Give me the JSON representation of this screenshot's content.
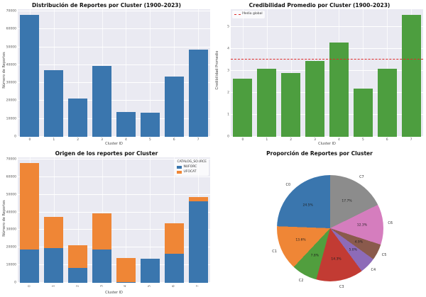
{
  "figure": {
    "background": "#ffffff",
    "axes_background": "#eaeaf2",
    "grid_color": "#ffffff"
  },
  "chart_data": [
    {
      "type": "bar",
      "title": "Distribución de Reportes por Cluster (1900–2023)",
      "xlabel": "Cluster ID",
      "ylabel": "Número de Reportes",
      "categories": [
        "0",
        "1",
        "2",
        "3",
        "4",
        "5",
        "6",
        "7"
      ],
      "values": [
        68000,
        37300,
        21300,
        39400,
        13900,
        13600,
        33700,
        48800
      ],
      "yticks": [
        0,
        10000,
        20000,
        30000,
        40000,
        50000,
        60000,
        70000
      ],
      "ylim": [
        0,
        71200
      ],
      "bar_color": "#3a76ae",
      "grid": "on",
      "legend_position": "none"
    },
    {
      "type": "bar",
      "title": "Credibilidad Promedio por Cluster (1900–2023)",
      "xlabel": "Cluster ID",
      "ylabel": "Credibilidad Promedio",
      "categories": [
        "0",
        "1",
        "2",
        "3",
        "4",
        "5",
        "6",
        "7"
      ],
      "values": [
        2.65,
        3.1,
        2.9,
        3.45,
        4.3,
        2.2,
        3.1,
        5.55
      ],
      "yticks": [
        0,
        1,
        2,
        3,
        4,
        5
      ],
      "ylim": [
        0,
        5.8
      ],
      "bar_color": "#4d9e3f",
      "grid": "on",
      "legend_position": "upper left",
      "annotations": [
        {
          "type": "hline",
          "label": "Media global",
          "y": 3.5,
          "color": "#dd2a2a",
          "style": "dashed"
        }
      ]
    },
    {
      "type": "bar-stacked",
      "title": "Origen de los reportes por Cluster",
      "xlabel": "Cluster ID",
      "ylabel": "Número de Reportes",
      "legend_title": "CATALOG_SOURCE",
      "legend_position": "upper right",
      "categories": [
        "0",
        "1",
        "2",
        "3",
        "4",
        "5",
        "6",
        "7"
      ],
      "series": [
        {
          "name": "NUFORC",
          "color": "#3a76ae",
          "values": [
            19000,
            19800,
            8600,
            18900,
            400,
            13600,
            16600,
            46100
          ]
        },
        {
          "name": "UFOCAT",
          "color": "#ef8636",
          "values": [
            49000,
            17500,
            12700,
            20500,
            13500,
            0,
            17100,
            2700
          ]
        }
      ],
      "yticks": [
        0,
        10000,
        20000,
        30000,
        40000,
        50000,
        60000,
        70000
      ],
      "ylim": [
        0,
        71200
      ],
      "grid": "on",
      "xtick_rotation": 90
    },
    {
      "type": "pie",
      "title": "Proporción de Reportes por Cluster",
      "start_angle": 90,
      "counterclock": true,
      "slices": [
        {
          "label": "C0",
          "pct": 24.5,
          "color": "#3a76ae"
        },
        {
          "label": "C1",
          "pct": 13.6,
          "color": "#ef8636"
        },
        {
          "label": "C2",
          "pct": 7.8,
          "color": "#519e3e"
        },
        {
          "label": "C3",
          "pct": 14.3,
          "color": "#c23b33"
        },
        {
          "label": "C4",
          "pct": 5.0,
          "color": "#8d6bb8"
        },
        {
          "label": "C5",
          "pct": 4.9,
          "color": "#8a5a4c"
        },
        {
          "label": "C6",
          "pct": 12.3,
          "color": "#d57dbe"
        },
        {
          "label": "C7",
          "pct": 17.7,
          "color": "#8c8c8c"
        }
      ]
    }
  ]
}
